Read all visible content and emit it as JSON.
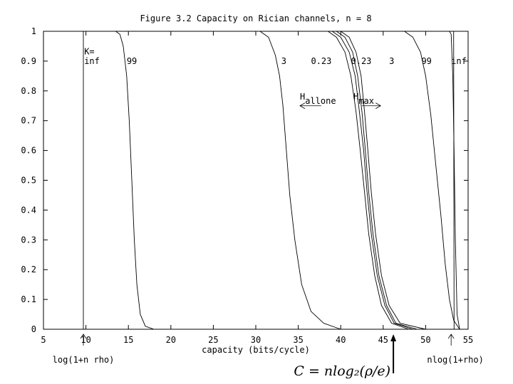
{
  "chart_data": {
    "type": "line",
    "title": "Figure 3.2  Capacity on Rician channels, n = 8",
    "xlabel": "capacity (bits/cycle)",
    "ylabel": "",
    "xlim": [
      5,
      55
    ],
    "ylim": [
      0,
      1
    ],
    "x_ticks": [
      "5",
      "10",
      "15",
      "20",
      "25",
      "30",
      "35",
      "40",
      "45",
      "50",
      "55"
    ],
    "y_ticks": [
      "0",
      "0.1",
      "0.2",
      "0.3",
      "0.4",
      "0.5",
      "0.6",
      "0.7",
      "0.8",
      "0.9",
      "1"
    ],
    "grid": false,
    "series": [
      {
        "x": [
          9.7,
          9.7
        ],
        "y": [
          1,
          0
        ]
      },
      {
        "x": [
          13.5,
          14.0,
          14.4,
          14.8,
          15.1,
          15.4,
          15.7,
          16.0,
          16.4,
          17.0,
          18.0
        ],
        "y": [
          1,
          0.99,
          0.95,
          0.85,
          0.7,
          0.5,
          0.3,
          0.15,
          0.05,
          0.01,
          0
        ]
      },
      {
        "x": [
          30.5,
          31.5,
          32.3,
          32.8,
          33.2,
          33.6,
          34.0,
          34.6,
          35.4,
          36.5,
          38.0,
          40.0
        ],
        "y": [
          1,
          0.98,
          0.92,
          0.85,
          0.75,
          0.6,
          0.45,
          0.3,
          0.15,
          0.06,
          0.02,
          0
        ]
      },
      {
        "x": [
          38.5,
          39.5,
          40.5,
          41.2,
          41.8,
          42.3,
          42.8,
          43.3,
          44.0,
          44.8,
          46.0,
          48.0
        ],
        "y": [
          1,
          0.98,
          0.93,
          0.85,
          0.73,
          0.6,
          0.46,
          0.32,
          0.18,
          0.08,
          0.02,
          0
        ]
      },
      {
        "x": [
          39.0,
          40.0,
          41.0,
          41.7,
          42.2,
          42.7,
          43.1,
          43.6,
          44.3,
          45.2,
          46.3,
          48.5
        ],
        "y": [
          1,
          0.98,
          0.93,
          0.85,
          0.73,
          0.6,
          0.46,
          0.32,
          0.18,
          0.08,
          0.02,
          0
        ]
      },
      {
        "x": [
          39.5,
          40.5,
          41.4,
          42.0,
          42.5,
          42.9,
          43.3,
          43.8,
          44.5,
          45.4,
          46.5,
          49.0
        ],
        "y": [
          1,
          0.98,
          0.93,
          0.85,
          0.73,
          0.6,
          0.46,
          0.32,
          0.18,
          0.08,
          0.02,
          0
        ]
      },
      {
        "x": [
          40.0,
          41.0,
          41.8,
          42.4,
          42.8,
          43.2,
          43.6,
          44.1,
          44.8,
          45.7,
          47.0,
          50.0
        ],
        "y": [
          1,
          0.98,
          0.93,
          0.85,
          0.73,
          0.6,
          0.46,
          0.32,
          0.18,
          0.08,
          0.02,
          0
        ]
      },
      {
        "x": [
          47.5,
          48.5,
          49.4,
          50.0,
          50.6,
          51.2,
          51.8,
          52.3,
          52.8,
          53.3,
          54.0
        ],
        "y": [
          1,
          0.98,
          0.93,
          0.85,
          0.72,
          0.55,
          0.38,
          0.22,
          0.1,
          0.03,
          0
        ]
      },
      {
        "x": [
          52.8,
          53.0,
          53.2,
          53.35,
          53.5,
          53.7,
          54.0
        ],
        "y": [
          1,
          0.99,
          0.85,
          0.6,
          0.3,
          0.05,
          0
        ]
      },
      {
        "x": [
          53.3,
          53.35
        ],
        "y": [
          1,
          0
        ]
      }
    ],
    "curve_labels": [
      {
        "text": "K=",
        "x": 9.8,
        "y": 0.932
      },
      {
        "text": "inf",
        "x": 9.8,
        "y": 0.9
      },
      {
        "text": "99",
        "x": 14.8,
        "y": 0.9
      },
      {
        "text": "3",
        "x": 33.0,
        "y": 0.9
      },
      {
        "text": "0.23",
        "x": 36.5,
        "y": 0.9
      },
      {
        "text": "0.23",
        "x": 41.2,
        "y": 0.9
      },
      {
        "text": "3",
        "x": 45.7,
        "y": 0.9
      },
      {
        "text": "99",
        "x": 49.5,
        "y": 0.9
      },
      {
        "text": "inf",
        "x": 53.0,
        "y": 0.9
      }
    ],
    "annotations": [
      {
        "text": "H",
        "sub": "allone",
        "x": 35.2,
        "y": 0.78,
        "arrow": "left",
        "ax1": 37.7,
        "ax2": 35.2,
        "ay": 0.75
      },
      {
        "text": "H",
        "sub": "max",
        "x": 41.5,
        "y": 0.78,
        "arrow": "right",
        "ax1": 42.5,
        "ax2": 44.7,
        "ay": 0.75
      }
    ],
    "bottom_labels": [
      {
        "text": "log(1+n rho)",
        "x": 9.7,
        "arrow_at": 9.7
      },
      {
        "text": "nlog(1+rho)",
        "x": 53.5,
        "arrow_at": 53.0
      }
    ],
    "formula": {
      "text": "C = nlog₂(ρ/e)",
      "arrow_at": 46.2
    }
  }
}
